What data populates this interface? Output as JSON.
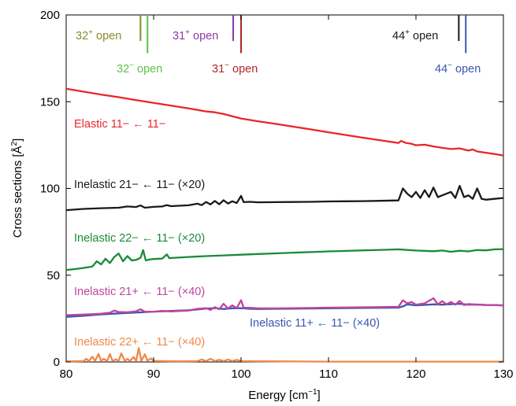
{
  "chart_data": {
    "type": "line",
    "xlabel_base": "Energy [cm",
    "xlabel_sup": "−1",
    "xlabel_end": "]",
    "ylabel_base": "Cross sections [Å",
    "ylabel_sup": "2",
    "ylabel_end": "]",
    "xlim": [
      80,
      130
    ],
    "ylim": [
      0,
      200
    ],
    "x_ticks": [
      80,
      90,
      100,
      110,
      120,
      130
    ],
    "y_ticks": [
      0,
      50,
      100,
      150,
      200
    ],
    "grid": false,
    "series": [
      {
        "name": "Elastic 11− ← 11−",
        "color": "#e8262a",
        "points": [
          [
            80,
            157.5
          ],
          [
            82,
            155.8
          ],
          [
            84,
            154.1
          ],
          [
            86,
            152.6
          ],
          [
            88,
            150.9
          ],
          [
            90,
            149.3
          ],
          [
            92,
            147.7
          ],
          [
            94,
            146.1
          ],
          [
            96,
            144.4
          ],
          [
            97,
            143.9
          ],
          [
            98,
            142.9
          ],
          [
            99,
            141.6
          ],
          [
            100,
            140.3
          ],
          [
            102,
            138.7
          ],
          [
            104,
            137.2
          ],
          [
            106,
            135.6
          ],
          [
            108,
            134.0
          ],
          [
            110,
            132.4
          ],
          [
            112,
            130.8
          ],
          [
            114,
            129.2
          ],
          [
            116,
            127.7
          ],
          [
            118,
            126.2
          ],
          [
            118.3,
            127.4
          ],
          [
            118.8,
            126.3
          ],
          [
            119.5,
            125.7
          ],
          [
            120,
            124.9
          ],
          [
            121,
            125.2
          ],
          [
            122,
            124.2
          ],
          [
            123,
            123.4
          ],
          [
            124,
            122.7
          ],
          [
            125,
            123.1
          ],
          [
            126,
            121.8
          ],
          [
            126.5,
            122.5
          ],
          [
            127,
            121.3
          ],
          [
            128,
            120.6
          ],
          [
            129,
            119.8
          ],
          [
            130,
            119.0
          ]
        ]
      },
      {
        "name": "Inelastic 21− ← 11− (×20)",
        "color": "#1a1a1a",
        "points": [
          [
            80,
            87.5
          ],
          [
            82,
            88.2
          ],
          [
            84,
            88.6
          ],
          [
            86,
            88.9
          ],
          [
            87,
            89.6
          ],
          [
            88,
            89.3
          ],
          [
            88.5,
            90.2
          ],
          [
            89,
            88.9
          ],
          [
            90,
            89.4
          ],
          [
            91,
            89.6
          ],
          [
            91.5,
            90.4
          ],
          [
            92,
            89.8
          ],
          [
            94,
            90.3
          ],
          [
            95,
            91.2
          ],
          [
            95.5,
            90.4
          ],
          [
            96,
            92.2
          ],
          [
            96.5,
            90.8
          ],
          [
            97,
            92.8
          ],
          [
            97.5,
            90.9
          ],
          [
            98,
            93.2
          ],
          [
            98.5,
            91.3
          ],
          [
            99,
            92.6
          ],
          [
            99.5,
            91.6
          ],
          [
            100,
            95.7
          ],
          [
            100.3,
            92.1
          ],
          [
            101,
            92.3
          ],
          [
            102,
            92.0
          ],
          [
            104,
            92.1
          ],
          [
            106,
            92.2
          ],
          [
            108,
            92.3
          ],
          [
            110,
            92.5
          ],
          [
            112,
            92.6
          ],
          [
            114,
            92.7
          ],
          [
            116,
            92.9
          ],
          [
            118,
            93.1
          ],
          [
            118.5,
            100.0
          ],
          [
            119,
            97.0
          ],
          [
            119.5,
            95.0
          ],
          [
            120,
            98.0
          ],
          [
            120.5,
            94.5
          ],
          [
            121,
            99.0
          ],
          [
            121.5,
            95.0
          ],
          [
            122,
            100.5
          ],
          [
            122.5,
            95.0
          ],
          [
            123,
            96.0
          ],
          [
            124,
            98.0
          ],
          [
            124.5,
            94.5
          ],
          [
            125,
            101.5
          ],
          [
            125.5,
            95.0
          ],
          [
            126,
            96.0
          ],
          [
            126.5,
            94.0
          ],
          [
            127,
            100.0
          ],
          [
            127.5,
            94.0
          ],
          [
            128,
            93.5
          ],
          [
            129,
            94.0
          ],
          [
            130,
            94.5
          ]
        ]
      },
      {
        "name": "Inelastic 22− ← 11− (×20)",
        "color": "#1a8a3a",
        "points": [
          [
            80,
            53.0
          ],
          [
            81,
            53.5
          ],
          [
            82,
            54.2
          ],
          [
            83,
            55.0
          ],
          [
            83.5,
            58.0
          ],
          [
            84,
            56.2
          ],
          [
            84.5,
            59.5
          ],
          [
            85,
            57.0
          ],
          [
            85.5,
            60.5
          ],
          [
            86,
            62.5
          ],
          [
            86.5,
            58.0
          ],
          [
            87,
            61.0
          ],
          [
            87.5,
            58.5
          ],
          [
            88,
            58.8
          ],
          [
            88.5,
            60.0
          ],
          [
            88.8,
            64.5
          ],
          [
            89.1,
            58.5
          ],
          [
            89.5,
            59.0
          ],
          [
            90,
            59.3
          ],
          [
            91,
            59.6
          ],
          [
            91.5,
            62.0
          ],
          [
            91.8,
            59.8
          ],
          [
            92,
            59.9
          ],
          [
            94,
            60.5
          ],
          [
            96,
            61.0
          ],
          [
            98,
            61.4
          ],
          [
            100,
            61.8
          ],
          [
            102,
            62.2
          ],
          [
            104,
            62.6
          ],
          [
            106,
            63.0
          ],
          [
            108,
            63.3
          ],
          [
            110,
            63.7
          ],
          [
            112,
            64.0
          ],
          [
            114,
            64.3
          ],
          [
            116,
            64.6
          ],
          [
            118,
            64.9
          ],
          [
            120,
            64.2
          ],
          [
            122,
            63.8
          ],
          [
            123,
            64.2
          ],
          [
            124,
            63.5
          ],
          [
            125,
            64.1
          ],
          [
            126,
            63.7
          ],
          [
            127,
            64.5
          ],
          [
            128,
            64.3
          ],
          [
            129,
            64.9
          ],
          [
            130,
            65.0
          ]
        ]
      },
      {
        "name": "Inelastic 11+ ← 11− (×40)",
        "color": "#3a56b0",
        "points": [
          [
            80,
            26.0
          ],
          [
            82,
            26.6
          ],
          [
            84,
            27.4
          ],
          [
            86,
            28.0
          ],
          [
            88,
            28.5
          ],
          [
            90,
            29.0
          ],
          [
            92,
            29.4
          ],
          [
            94,
            29.8
          ],
          [
            95,
            30.2
          ],
          [
            96,
            30.8
          ],
          [
            97,
            31.0
          ],
          [
            98,
            30.5
          ],
          [
            99,
            30.9
          ],
          [
            100,
            31.0
          ],
          [
            101,
            30.6
          ],
          [
            102,
            30.5
          ],
          [
            104,
            30.6
          ],
          [
            106,
            30.7
          ],
          [
            108,
            30.8
          ],
          [
            110,
            30.9
          ],
          [
            112,
            31.0
          ],
          [
            114,
            31.1
          ],
          [
            116,
            31.2
          ],
          [
            118,
            31.3
          ],
          [
            118.5,
            32.0
          ],
          [
            119,
            33.2
          ],
          [
            120,
            32.6
          ],
          [
            121,
            32.9
          ],
          [
            122,
            33.2
          ],
          [
            123,
            33.0
          ],
          [
            124,
            33.3
          ],
          [
            125,
            33.5
          ],
          [
            126,
            33.0
          ],
          [
            127,
            33.1
          ],
          [
            128,
            32.9
          ],
          [
            129,
            32.8
          ],
          [
            130,
            32.6
          ]
        ]
      },
      {
        "name": "Inelastic 21+ ← 11− (×40)",
        "color": "#c0449e",
        "points": [
          [
            80,
            27.0
          ],
          [
            82,
            27.3
          ],
          [
            84,
            27.8
          ],
          [
            85,
            28.4
          ],
          [
            85.5,
            29.6
          ],
          [
            86,
            28.8
          ],
          [
            87,
            28.6
          ],
          [
            88,
            29.2
          ],
          [
            88.5,
            30.4
          ],
          [
            89,
            29.0
          ],
          [
            90,
            29.0
          ],
          [
            91,
            29.4
          ],
          [
            92,
            29.1
          ],
          [
            93,
            29.4
          ],
          [
            94,
            29.6
          ],
          [
            95,
            30.6
          ],
          [
            96,
            31.0
          ],
          [
            96.5,
            30.0
          ],
          [
            97,
            31.6
          ],
          [
            97.5,
            30.4
          ],
          [
            98,
            33.5
          ],
          [
            98.5,
            30.8
          ],
          [
            99,
            32.6
          ],
          [
            99.5,
            31.0
          ],
          [
            100,
            35.6
          ],
          [
            100.3,
            31.2
          ],
          [
            101,
            31.2
          ],
          [
            102,
            30.9
          ],
          [
            104,
            30.9
          ],
          [
            106,
            31.0
          ],
          [
            108,
            31.1
          ],
          [
            110,
            31.3
          ],
          [
            112,
            31.4
          ],
          [
            114,
            31.5
          ],
          [
            116,
            31.6
          ],
          [
            118,
            31.8
          ],
          [
            118.5,
            35.5
          ],
          [
            119,
            33.8
          ],
          [
            119.5,
            34.5
          ],
          [
            120,
            33.0
          ],
          [
            121,
            33.8
          ],
          [
            122,
            36.7
          ],
          [
            122.5,
            33.2
          ],
          [
            123,
            35.0
          ],
          [
            123.5,
            33.2
          ],
          [
            124,
            34.6
          ],
          [
            124.5,
            33.0
          ],
          [
            125,
            35.2
          ],
          [
            125.5,
            32.8
          ],
          [
            126,
            33.4
          ],
          [
            127,
            33.0
          ],
          [
            128,
            32.8
          ],
          [
            129,
            32.8
          ],
          [
            130,
            32.5
          ]
        ]
      },
      {
        "name": "Inelastic 22+ ← 11− (×40)",
        "color": "#f0884a",
        "points": [
          [
            80,
            0.3
          ],
          [
            82,
            0.5
          ],
          [
            82.3,
            1.8
          ],
          [
            82.6,
            0.5
          ],
          [
            83,
            3.0
          ],
          [
            83.3,
            0.6
          ],
          [
            83.7,
            4.6
          ],
          [
            84,
            0.6
          ],
          [
            84.3,
            1.8
          ],
          [
            84.7,
            0.5
          ],
          [
            85,
            4.6
          ],
          [
            85.3,
            0.6
          ],
          [
            85.7,
            1.5
          ],
          [
            86,
            0.5
          ],
          [
            86.3,
            5.0
          ],
          [
            86.7,
            0.6
          ],
          [
            87,
            1.8
          ],
          [
            87.3,
            0.6
          ],
          [
            87.7,
            2.8
          ],
          [
            88,
            0.6
          ],
          [
            88.3,
            8.0
          ],
          [
            88.6,
            0.7
          ],
          [
            89,
            4.4
          ],
          [
            89.3,
            0.8
          ],
          [
            89.7,
            2.0
          ],
          [
            90,
            0.6
          ],
          [
            91,
            0.5
          ],
          [
            92,
            0.4
          ],
          [
            93,
            0.4
          ],
          [
            94,
            0.4
          ],
          [
            95,
            0.5
          ],
          [
            95.5,
            1.4
          ],
          [
            96,
            0.5
          ],
          [
            96.5,
            1.8
          ],
          [
            97,
            0.5
          ],
          [
            97.5,
            1.2
          ],
          [
            98,
            0.5
          ],
          [
            98.5,
            1.4
          ],
          [
            99,
            0.5
          ],
          [
            99.5,
            1.2
          ],
          [
            100,
            0.5
          ],
          [
            102,
            0.4
          ],
          [
            105,
            0.3
          ],
          [
            110,
            0.2
          ],
          [
            115,
            0.2
          ],
          [
            120,
            0.2
          ],
          [
            125,
            0.2
          ],
          [
            130,
            0.2
          ]
        ]
      }
    ],
    "labels": {
      "elastic": {
        "main": "Elastic 11− ← 11−",
        "color": "#e8262a"
      },
      "inel21m": {
        "main": "Inelastic 21− ← 11− (×20)",
        "color": "#1a1a1a"
      },
      "inel22m": {
        "main": "Inelastic 22− ← 11− (×20)",
        "color": "#1a8a3a"
      },
      "inel21p": {
        "main": "Inelastic 21+ ← 11− (×40)",
        "color": "#c0449e"
      },
      "inel11p": {
        "main": "Inelastic 11+ ← 11− (×40)",
        "color": "#3a56b0"
      },
      "inel22p": {
        "main": "Inelastic 22+ ← 11− (×40)",
        "color": "#f0884a"
      }
    },
    "thresholds": [
      {
        "id": "32p",
        "x": 88.5,
        "color": "#8a8a2c",
        "top": 200,
        "bottom": 185
      },
      {
        "id": "32m",
        "x": 89.3,
        "color": "#5cc24a",
        "top": 200,
        "bottom": 178
      },
      {
        "id": "31p",
        "x": 99.1,
        "color": "#8a3aa8",
        "top": 200,
        "bottom": 185
      },
      {
        "id": "31m",
        "x": 100.0,
        "color": "#b02828",
        "top": 200,
        "bottom": 178
      },
      {
        "id": "44p",
        "x": 124.9,
        "color": "#1a1a1a",
        "top": 200,
        "bottom": 185
      },
      {
        "id": "44m",
        "x": 125.7,
        "color": "#3a56b0",
        "top": 200,
        "bottom": 178
      }
    ],
    "threshold_labels": {
      "32p": {
        "base": "32",
        "sup": "+",
        "tail": " open",
        "color": "#8a8a2c"
      },
      "32m": {
        "base": "32",
        "sup": "−",
        "tail": " open",
        "color": "#5cc24a"
      },
      "31p": {
        "base": "31",
        "sup": "+",
        "tail": " open",
        "color": "#8a3aa8"
      },
      "31m": {
        "base": "31",
        "sup": "−",
        "tail": " open",
        "color": "#b02828"
      },
      "44p": {
        "base": "44",
        "sup": "+",
        "tail": " open",
        "color": "#1a1a1a"
      },
      "44m": {
        "base": "44",
        "sup": "−",
        "tail": " open",
        "color": "#3a56b0"
      }
    }
  }
}
